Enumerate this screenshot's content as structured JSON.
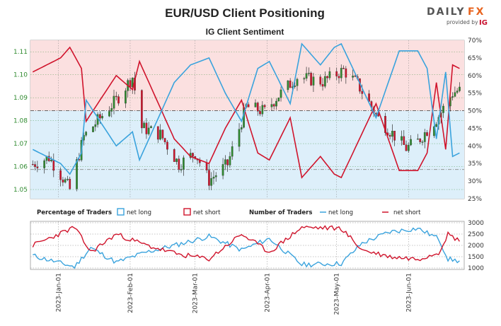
{
  "header": {
    "title": "EUR/USD Client Positioning",
    "subtitle": "IG Client Sentiment"
  },
  "brand": {
    "name_main": "DAILY",
    "name_fx": "FX",
    "provided_by": "provided by",
    "provider": "IG",
    "fx_color": "#e8641f",
    "ig_color": "#c8102e"
  },
  "legend": {
    "pct_heading": "Percentage of Traders",
    "pct_long": "net long",
    "pct_short": "net short",
    "num_heading": "Number of Traders",
    "num_long": "net long",
    "num_short": "net short"
  },
  "colors": {
    "long": "#3aa3dd",
    "short": "#d0142c",
    "long_fill": "#ddeffa",
    "short_fill": "#fbe0e0",
    "candle_up": "#2f8a2f",
    "candle_down": "#d0142c",
    "left_axis": "#2f8a2f"
  },
  "chart_data": [
    {
      "type": "candlestick",
      "title": "EUR/USD Client Positioning",
      "subtitle": "IG Client Sentiment",
      "pair": "EUR/USD",
      "x_ticks": [
        "2023-Jan-01",
        "2023-Feb-01",
        "2023-Mar-01",
        "2023-Apr-01",
        "2023-May-01",
        "2023-Jun-01"
      ],
      "left_axis": {
        "ticks": [
          "1.05",
          "1.06",
          "1.07",
          "1.08",
          "1.09",
          "1.10",
          "1.11"
        ],
        "ylim": [
          1.046,
          1.115
        ]
      },
      "right_axis": {
        "ticks": [
          "25%",
          "30%",
          "35%",
          "40%",
          "45%",
          "50%",
          "55%",
          "60%",
          "65%",
          "70%"
        ],
        "ylim": [
          25,
          70
        ]
      },
      "grid": true,
      "price_close_keypoints": [
        {
          "date": "2022-12-21",
          "close": 1.061
        },
        {
          "date": "2022-12-28",
          "close": 1.064
        },
        {
          "date": "2023-01-03",
          "close": 1.055
        },
        {
          "date": "2023-01-06",
          "close": 1.05
        },
        {
          "date": "2023-01-12",
          "close": 1.073
        },
        {
          "date": "2023-01-18",
          "close": 1.08
        },
        {
          "date": "2023-01-26",
          "close": 1.089
        },
        {
          "date": "2023-02-02",
          "close": 1.099
        },
        {
          "date": "2023-02-06",
          "close": 1.077
        },
        {
          "date": "2023-02-14",
          "close": 1.074
        },
        {
          "date": "2023-02-22",
          "close": 1.061
        },
        {
          "date": "2023-03-01",
          "close": 1.066
        },
        {
          "date": "2023-03-07",
          "close": 1.054
        },
        {
          "date": "2023-03-15",
          "close": 1.061
        },
        {
          "date": "2023-03-23",
          "close": 1.086
        },
        {
          "date": "2023-03-31",
          "close": 1.084
        },
        {
          "date": "2023-04-05",
          "close": 1.09
        },
        {
          "date": "2023-04-14",
          "close": 1.099
        },
        {
          "date": "2023-04-25",
          "close": 1.097
        },
        {
          "date": "2023-05-04",
          "close": 1.102
        },
        {
          "date": "2023-05-10",
          "close": 1.096
        },
        {
          "date": "2023-05-19",
          "close": 1.081
        },
        {
          "date": "2023-05-31",
          "close": 1.068
        },
        {
          "date": "2023-06-05",
          "close": 1.071
        },
        {
          "date": "2023-06-14",
          "close": 1.082
        },
        {
          "date": "2023-06-20",
          "close": 1.092
        },
        {
          "date": "2023-06-22",
          "close": 1.093
        }
      ],
      "series": [
        {
          "name": "net long",
          "axis": "right",
          "points": [
            {
              "date": "2022-12-21",
              "value": 39
            },
            {
              "date": "2023-01-02",
              "value": 35
            },
            {
              "date": "2023-01-06",
              "value": 32
            },
            {
              "date": "2023-01-11",
              "value": 38
            },
            {
              "date": "2023-01-13",
              "value": 53
            },
            {
              "date": "2023-01-18",
              "value": 48
            },
            {
              "date": "2023-01-26",
              "value": 40
            },
            {
              "date": "2023-02-02",
              "value": 44
            },
            {
              "date": "2023-02-05",
              "value": 36
            },
            {
              "date": "2023-02-20",
              "value": 58
            },
            {
              "date": "2023-02-27",
              "value": 63
            },
            {
              "date": "2023-03-07",
              "value": 65
            },
            {
              "date": "2023-03-14",
              "value": 55
            },
            {
              "date": "2023-03-21",
              "value": 47
            },
            {
              "date": "2023-03-28",
              "value": 62
            },
            {
              "date": "2023-04-02",
              "value": 64
            },
            {
              "date": "2023-04-11",
              "value": 52
            },
            {
              "date": "2023-04-16",
              "value": 69
            },
            {
              "date": "2023-04-24",
              "value": 63
            },
            {
              "date": "2023-04-30",
              "value": 68
            },
            {
              "date": "2023-05-03",
              "value": 69
            },
            {
              "date": "2023-05-08",
              "value": 62
            },
            {
              "date": "2023-05-18",
              "value": 48
            },
            {
              "date": "2023-05-28",
              "value": 67
            },
            {
              "date": "2023-06-05",
              "value": 67
            },
            {
              "date": "2023-06-09",
              "value": 62
            },
            {
              "date": "2023-06-13",
              "value": 42
            },
            {
              "date": "2023-06-17",
              "value": 61
            },
            {
              "date": "2023-06-20",
              "value": 37
            },
            {
              "date": "2023-06-23",
              "value": 38
            }
          ]
        },
        {
          "name": "net short",
          "axis": "right",
          "derived": "100 - net long"
        }
      ]
    },
    {
      "type": "line",
      "title": "Number of Traders",
      "y_ticks": [
        "1000",
        "1500",
        "2000",
        "2500",
        "3000"
      ],
      "ylim": [
        1000,
        3000
      ],
      "series": [
        {
          "name": "net long",
          "points": [
            {
              "date": "2022-12-21",
              "value": 1550
            },
            {
              "date": "2023-01-08",
              "value": 1050
            },
            {
              "date": "2023-01-15",
              "value": 1900
            },
            {
              "date": "2023-01-26",
              "value": 1250
            },
            {
              "date": "2023-02-08",
              "value": 1700
            },
            {
              "date": "2023-02-22",
              "value": 2050
            },
            {
              "date": "2023-03-07",
              "value": 2400
            },
            {
              "date": "2023-03-21",
              "value": 1800
            },
            {
              "date": "2023-04-02",
              "value": 2300
            },
            {
              "date": "2023-04-16",
              "value": 1150
            },
            {
              "date": "2023-05-03",
              "value": 1200
            },
            {
              "date": "2023-05-12",
              "value": 2100
            },
            {
              "date": "2023-05-24",
              "value": 2600
            },
            {
              "date": "2023-06-05",
              "value": 2750
            },
            {
              "date": "2023-06-14",
              "value": 2300
            },
            {
              "date": "2023-06-18",
              "value": 1400
            },
            {
              "date": "2023-06-23",
              "value": 1300
            }
          ]
        },
        {
          "name": "net short",
          "points": [
            {
              "date": "2022-12-21",
              "value": 2000
            },
            {
              "date": "2023-01-08",
              "value": 2800
            },
            {
              "date": "2023-01-15",
              "value": 1700
            },
            {
              "date": "2023-01-26",
              "value": 2500
            },
            {
              "date": "2023-02-08",
              "value": 2000
            },
            {
              "date": "2023-02-22",
              "value": 1600
            },
            {
              "date": "2023-03-07",
              "value": 1400
            },
            {
              "date": "2023-03-21",
              "value": 2500
            },
            {
              "date": "2023-04-02",
              "value": 1700
            },
            {
              "date": "2023-04-16",
              "value": 2800
            },
            {
              "date": "2023-05-03",
              "value": 2750
            },
            {
              "date": "2023-05-12",
              "value": 1800
            },
            {
              "date": "2023-05-24",
              "value": 1500
            },
            {
              "date": "2023-06-05",
              "value": 1400
            },
            {
              "date": "2023-06-14",
              "value": 1700
            },
            {
              "date": "2023-06-18",
              "value": 2500
            },
            {
              "date": "2023-06-23",
              "value": 2200
            }
          ]
        }
      ]
    }
  ]
}
